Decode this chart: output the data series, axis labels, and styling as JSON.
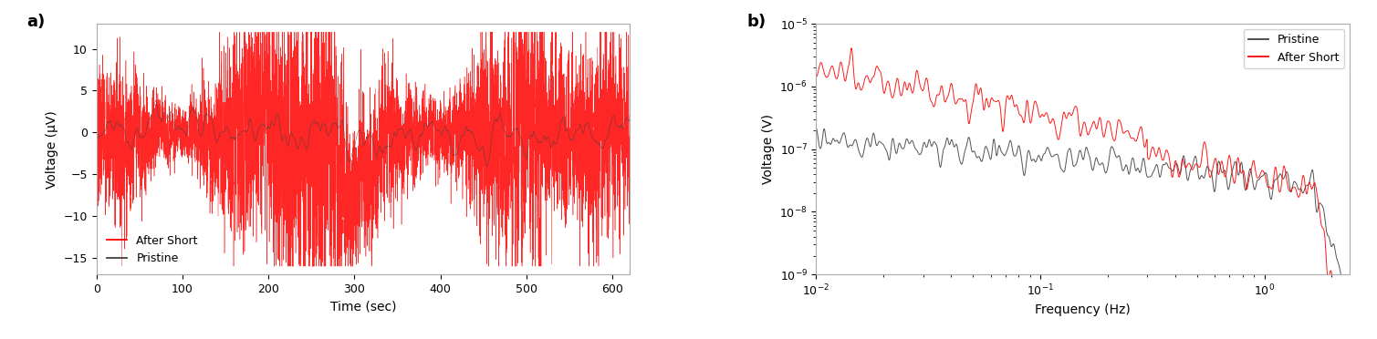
{
  "fig_width": 15.09,
  "fig_height": 3.72,
  "dpi": 100,
  "left_plot": {
    "xlabel": "Time (sec)",
    "ylabel": "Voltage (μV)",
    "xlim": [
      0,
      620
    ],
    "ylim": [
      -17,
      13
    ],
    "yticks": [
      -15,
      -10,
      -5,
      0,
      5,
      10
    ],
    "xticks": [
      0,
      100,
      200,
      300,
      400,
      500,
      600
    ],
    "legend": [
      {
        "label": "After Short",
        "color": "#FF0000"
      },
      {
        "label": "Pristine",
        "color": "#404040"
      }
    ],
    "label": "a)",
    "n_points": 8000,
    "time_end": 620
  },
  "right_plot": {
    "xlabel": "Frequency (Hz)",
    "ylabel": "Voltage (V)",
    "xlim_log10_min": -2,
    "xlim_log10_max": 0.38,
    "ylim_log10_min": -9,
    "ylim_log10_max": -5,
    "legend": [
      {
        "label": "Pristine",
        "color": "#404040"
      },
      {
        "label": "After Short",
        "color": "#FF0000"
      }
    ],
    "label": "b)",
    "n_points": 1200
  },
  "background_color": "#ffffff",
  "axes_edge_color": "#aaaaaa"
}
